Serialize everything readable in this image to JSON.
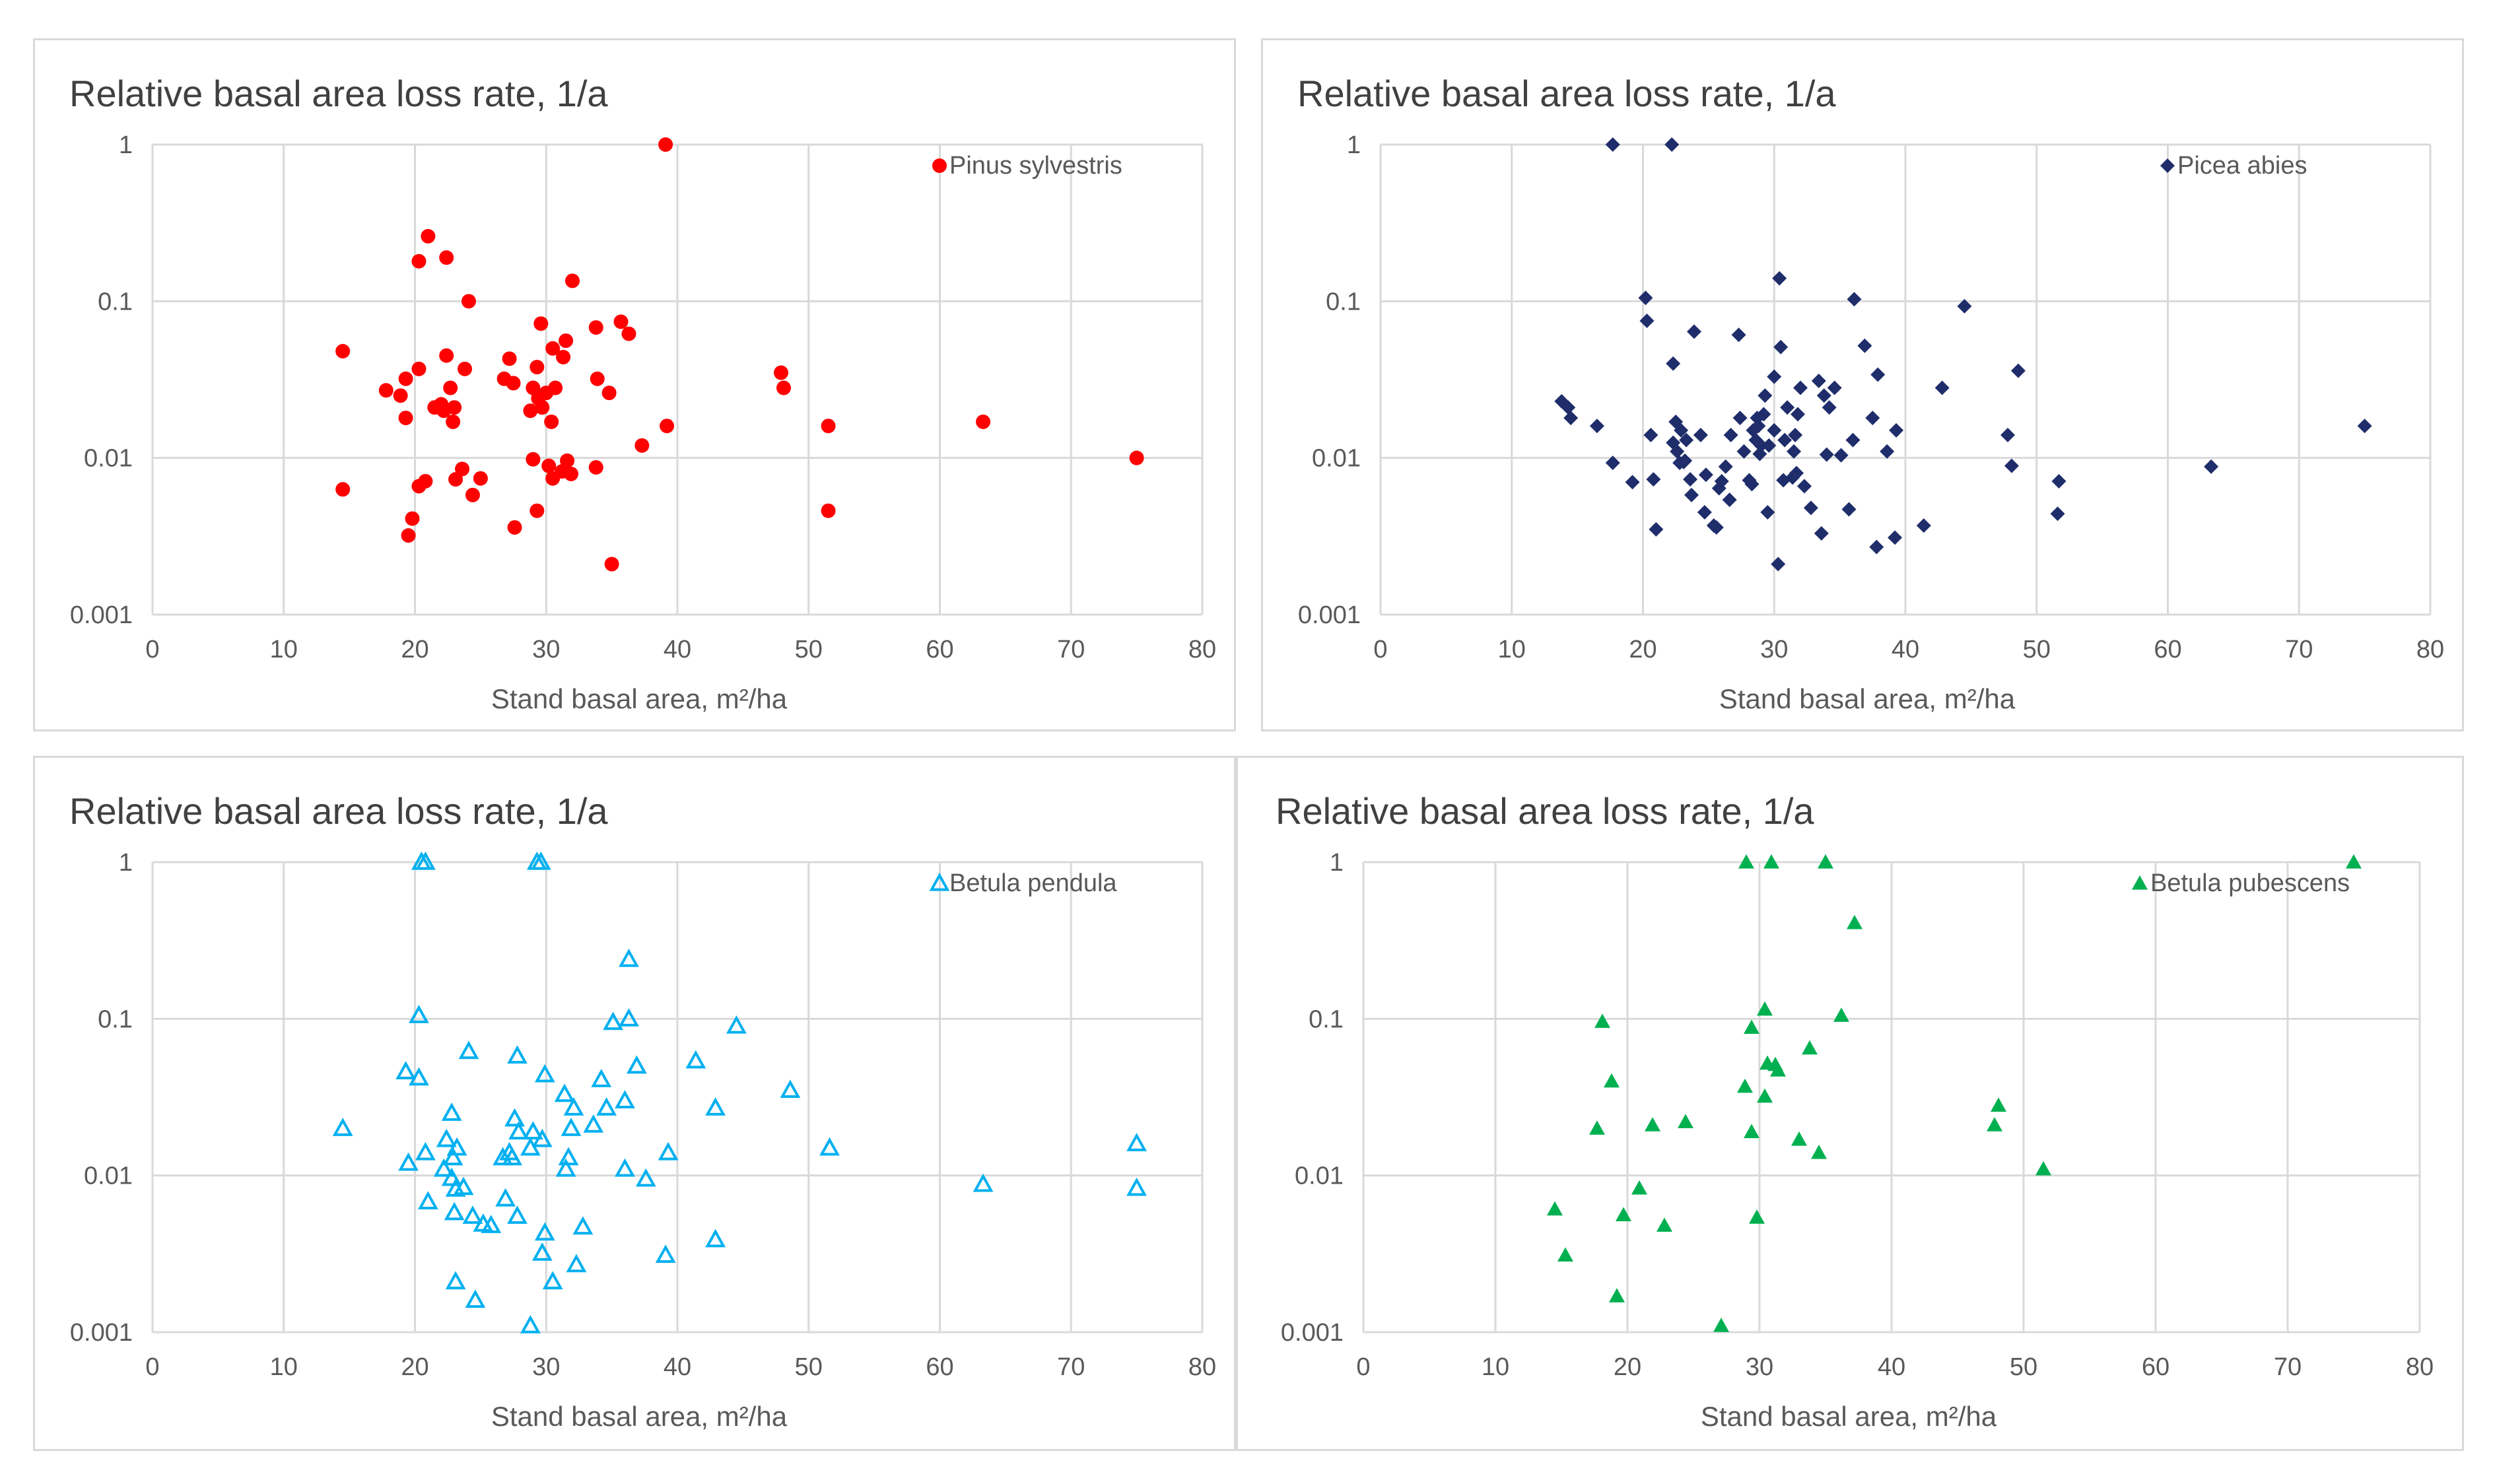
{
  "chart_data": [
    {
      "type": "scatter",
      "title": "Relative basal area loss rate, 1/a",
      "xlabel": "Stand basal area, m²/ha",
      "ylabel": "",
      "xlim": [
        0,
        80
      ],
      "ylim": [
        0.001,
        1
      ],
      "yscale": "log",
      "grid": true,
      "legend": "top-right",
      "x_ticks": [
        "0",
        "10",
        "20",
        "30",
        "40",
        "50",
        "60",
        "70",
        "80"
      ],
      "y_ticks": [
        "1",
        "0.1",
        "0.01",
        "0.001"
      ],
      "series": [
        {
          "name": "Pinus sylvestris",
          "marker": "circle",
          "color": "#ff0000",
          "points": [
            [
              14.5,
              0.048
            ],
            [
              14.5,
              0.0063
            ],
            [
              17.8,
              0.027
            ],
            [
              18.9,
              0.025
            ],
            [
              19.3,
              0.032
            ],
            [
              19.3,
              0.018
            ],
            [
              19.5,
              0.0032
            ],
            [
              19.8,
              0.0041
            ],
            [
              20.3,
              0.037
            ],
            [
              20.3,
              0.0066
            ],
            [
              20.3,
              0.18
            ],
            [
              20.8,
              0.0071
            ],
            [
              21.0,
              0.26
            ],
            [
              21.5,
              0.021
            ],
            [
              22.0,
              0.022
            ],
            [
              22.2,
              0.02
            ],
            [
              22.4,
              0.045
            ],
            [
              22.4,
              0.19
            ],
            [
              22.7,
              0.028
            ],
            [
              22.9,
              0.017
            ],
            [
              23.0,
              0.021
            ],
            [
              23.1,
              0.0073
            ],
            [
              23.6,
              0.0085
            ],
            [
              23.8,
              0.037
            ],
            [
              24.1,
              0.1
            ],
            [
              24.4,
              0.0058
            ],
            [
              25.0,
              0.0074
            ],
            [
              26.8,
              0.032
            ],
            [
              27.2,
              0.043
            ],
            [
              27.5,
              0.03
            ],
            [
              27.6,
              0.0036
            ],
            [
              28.8,
              0.02
            ],
            [
              29.0,
              0.0098
            ],
            [
              29.0,
              0.028
            ],
            [
              29.3,
              0.038
            ],
            [
              29.3,
              0.0046
            ],
            [
              29.4,
              0.024
            ],
            [
              29.6,
              0.072
            ],
            [
              29.7,
              0.021
            ],
            [
              30.0,
              0.026
            ],
            [
              30.2,
              0.0089
            ],
            [
              30.4,
              0.017
            ],
            [
              30.5,
              0.05
            ],
            [
              30.5,
              0.0074
            ],
            [
              30.7,
              0.028
            ],
            [
              31.2,
              0.0082
            ],
            [
              31.3,
              0.044
            ],
            [
              31.5,
              0.056
            ],
            [
              31.6,
              0.0096
            ],
            [
              31.9,
              0.0079
            ],
            [
              32.0,
              0.135
            ],
            [
              33.8,
              0.068
            ],
            [
              33.8,
              0.0087
            ],
            [
              33.9,
              0.032
            ],
            [
              34.8,
              0.026
            ],
            [
              35.0,
              0.0021
            ],
            [
              35.7,
              0.074
            ],
            [
              36.3,
              0.062
            ],
            [
              37.3,
              0.012
            ],
            [
              39.1,
              1.0
            ],
            [
              39.2,
              0.016
            ],
            [
              47.9,
              0.035
            ],
            [
              48.1,
              0.028
            ],
            [
              51.5,
              0.016
            ],
            [
              51.5,
              0.0046
            ],
            [
              63.3,
              0.017
            ],
            [
              75.0,
              0.01
            ]
          ]
        },
        {
          "name": "Picea abies",
          "marker": "diamond",
          "color": "#1f2d6b",
          "points": [
            [
              13.8,
              0.023
            ],
            [
              14.3,
              0.021
            ],
            [
              14.5,
              0.018
            ],
            [
              16.5,
              0.016
            ],
            [
              17.7,
              0.0093
            ],
            [
              17.7,
              1.0
            ],
            [
              19.2,
              0.007
            ],
            [
              20.2,
              0.105
            ],
            [
              20.3,
              0.075
            ],
            [
              20.6,
              0.014
            ],
            [
              20.8,
              0.0073
            ],
            [
              21.0,
              0.0035
            ],
            [
              22.2,
              1.0
            ],
            [
              22.3,
              0.04
            ],
            [
              22.3,
              0.0125
            ],
            [
              22.5,
              0.017
            ],
            [
              22.6,
              0.011
            ],
            [
              22.8,
              0.0093
            ],
            [
              22.9,
              0.015
            ],
            [
              23.1,
              0.0094
            ],
            [
              23.2,
              0.0096
            ],
            [
              23.3,
              0.013
            ],
            [
              23.6,
              0.0073
            ],
            [
              23.7,
              0.0058
            ],
            [
              23.9,
              0.064
            ],
            [
              24.4,
              0.014
            ],
            [
              24.7,
              0.0045
            ],
            [
              24.8,
              0.0078
            ],
            [
              25.4,
              0.0037
            ],
            [
              25.6,
              0.0036
            ],
            [
              25.8,
              0.0064
            ],
            [
              26.0,
              0.0071
            ],
            [
              26.3,
              0.0088
            ],
            [
              26.6,
              0.0054
            ],
            [
              26.7,
              0.014
            ],
            [
              27.3,
              0.061
            ],
            [
              27.4,
              0.018
            ],
            [
              27.7,
              0.011
            ],
            [
              28.1,
              0.0072
            ],
            [
              28.3,
              0.0068
            ],
            [
              28.4,
              0.015
            ],
            [
              28.6,
              0.013
            ],
            [
              28.7,
              0.018
            ],
            [
              28.8,
              0.016
            ],
            [
              28.9,
              0.0106
            ],
            [
              29.0,
              0.012
            ],
            [
              29.2,
              0.019
            ],
            [
              29.3,
              0.025
            ],
            [
              29.5,
              0.0045
            ],
            [
              29.6,
              0.012
            ],
            [
              30.0,
              0.015
            ],
            [
              30.0,
              0.033
            ],
            [
              30.3,
              0.0021
            ],
            [
              30.4,
              0.14
            ],
            [
              30.5,
              0.051
            ],
            [
              30.7,
              0.0072
            ],
            [
              30.8,
              0.013
            ],
            [
              31.0,
              0.021
            ],
            [
              31.4,
              0.0075
            ],
            [
              31.5,
              0.011
            ],
            [
              31.6,
              0.014
            ],
            [
              31.7,
              0.008
            ],
            [
              31.8,
              0.019
            ],
            [
              32.0,
              0.028
            ],
            [
              32.3,
              0.0066
            ],
            [
              32.8,
              0.0048
            ],
            [
              33.4,
              0.031
            ],
            [
              33.6,
              0.0033
            ],
            [
              33.8,
              0.025
            ],
            [
              34.0,
              0.0105
            ],
            [
              34.2,
              0.021
            ],
            [
              34.6,
              0.028
            ],
            [
              35.1,
              0.0104
            ],
            [
              35.7,
              0.0047
            ],
            [
              36.0,
              0.013
            ],
            [
              36.1,
              0.103
            ],
            [
              36.9,
              0.052
            ],
            [
              37.5,
              0.018
            ],
            [
              37.8,
              0.0027
            ],
            [
              37.9,
              0.034
            ],
            [
              38.6,
              0.011
            ],
            [
              39.2,
              0.0031
            ],
            [
              39.3,
              0.015
            ],
            [
              41.4,
              0.0037
            ],
            [
              42.8,
              0.028
            ],
            [
              44.5,
              0.093
            ],
            [
              47.8,
              0.014
            ],
            [
              48.1,
              0.0089
            ],
            [
              48.6,
              0.036
            ],
            [
              51.6,
              0.0044
            ],
            [
              51.7,
              0.0071
            ],
            [
              63.3,
              0.0088
            ],
            [
              75.0,
              0.016
            ]
          ]
        },
        {
          "name": "Betula pendula",
          "marker": "triangle-open",
          "color": "#00b0f0",
          "points": [
            [
              14.5,
              0.02
            ],
            [
              19.3,
              0.046
            ],
            [
              19.5,
              0.012
            ],
            [
              20.3,
              0.105
            ],
            [
              20.3,
              0.042
            ],
            [
              20.5,
              1.0
            ],
            [
              20.8,
              1.0
            ],
            [
              20.8,
              0.014
            ],
            [
              21.0,
              0.0068
            ],
            [
              22.2,
              0.011
            ],
            [
              22.4,
              0.017
            ],
            [
              22.8,
              0.025
            ],
            [
              22.8,
              0.0096
            ],
            [
              22.9,
              0.013
            ],
            [
              23.0,
              0.0058
            ],
            [
              23.1,
              0.0021
            ],
            [
              23.1,
              0.0082
            ],
            [
              23.2,
              0.015
            ],
            [
              23.7,
              0.0084
            ],
            [
              24.1,
              0.062
            ],
            [
              24.4,
              0.0055
            ],
            [
              24.6,
              0.0016
            ],
            [
              25.2,
              0.0049
            ],
            [
              25.8,
              0.0048
            ],
            [
              26.7,
              0.013
            ],
            [
              26.9,
              0.0071
            ],
            [
              27.2,
              0.014
            ],
            [
              27.4,
              0.013
            ],
            [
              27.6,
              0.023
            ],
            [
              27.8,
              0.0055
            ],
            [
              27.9,
              0.019
            ],
            [
              27.8,
              0.058
            ],
            [
              28.8,
              0.0011
            ],
            [
              28.8,
              0.015
            ],
            [
              29.0,
              0.019
            ],
            [
              29.3,
              1.0
            ],
            [
              29.6,
              1.0
            ],
            [
              29.7,
              0.017
            ],
            [
              29.7,
              0.0032
            ],
            [
              29.9,
              0.044
            ],
            [
              29.9,
              0.0043
            ],
            [
              30.5,
              0.0021
            ],
            [
              31.4,
              0.033
            ],
            [
              31.5,
              0.011
            ],
            [
              31.7,
              0.013
            ],
            [
              31.9,
              0.02
            ],
            [
              32.1,
              0.027
            ],
            [
              32.3,
              0.0027
            ],
            [
              32.8,
              0.0047
            ],
            [
              33.6,
              0.021
            ],
            [
              34.2,
              0.041
            ],
            [
              34.6,
              0.027
            ],
            [
              35.1,
              0.095
            ],
            [
              36.0,
              0.011
            ],
            [
              36.0,
              0.03
            ],
            [
              36.3,
              0.1
            ],
            [
              36.3,
              0.24
            ],
            [
              36.9,
              0.05
            ],
            [
              37.6,
              0.0095
            ],
            [
              39.1,
              0.0031
            ],
            [
              39.3,
              0.014
            ],
            [
              41.4,
              0.054
            ],
            [
              42.9,
              0.027
            ],
            [
              42.9,
              0.0039
            ],
            [
              44.5,
              0.09
            ],
            [
              48.6,
              0.035
            ],
            [
              51.6,
              0.015
            ],
            [
              63.3,
              0.0088
            ],
            [
              75.0,
              0.016
            ],
            [
              75.0,
              0.0083
            ]
          ]
        },
        {
          "name": "Betula pubescens",
          "marker": "triangle",
          "color": "#00b050",
          "points": [
            [
              14.5,
              0.0061
            ],
            [
              15.3,
              0.0031
            ],
            [
              17.7,
              0.02
            ],
            [
              18.1,
              0.096
            ],
            [
              18.8,
              0.04
            ],
            [
              19.2,
              0.0017
            ],
            [
              19.7,
              0.0056
            ],
            [
              20.9,
              0.0083
            ],
            [
              21.9,
              0.021
            ],
            [
              22.8,
              0.0048
            ],
            [
              24.4,
              0.022
            ],
            [
              27.1,
              0.0011
            ],
            [
              28.9,
              0.037
            ],
            [
              29.0,
              1.0
            ],
            [
              29.4,
              0.088
            ],
            [
              29.4,
              0.019
            ],
            [
              29.8,
              0.0054
            ],
            [
              30.4,
              0.032
            ],
            [
              30.4,
              0.115
            ],
            [
              30.6,
              0.052
            ],
            [
              30.9,
              1.0
            ],
            [
              31.2,
              0.051
            ],
            [
              31.4,
              0.047
            ],
            [
              33.0,
              0.017
            ],
            [
              33.8,
              0.065
            ],
            [
              34.5,
              0.014
            ],
            [
              35.0,
              1.0
            ],
            [
              36.2,
              0.105
            ],
            [
              37.2,
              0.41
            ],
            [
              47.8,
              0.021
            ],
            [
              48.1,
              0.028
            ],
            [
              51.5,
              0.011
            ],
            [
              75.0,
              1.0
            ]
          ]
        }
      ]
    }
  ],
  "colors": {
    "gridline": "#d9d9d9",
    "panel_border": "#d9d9d9",
    "text": "#595959"
  }
}
